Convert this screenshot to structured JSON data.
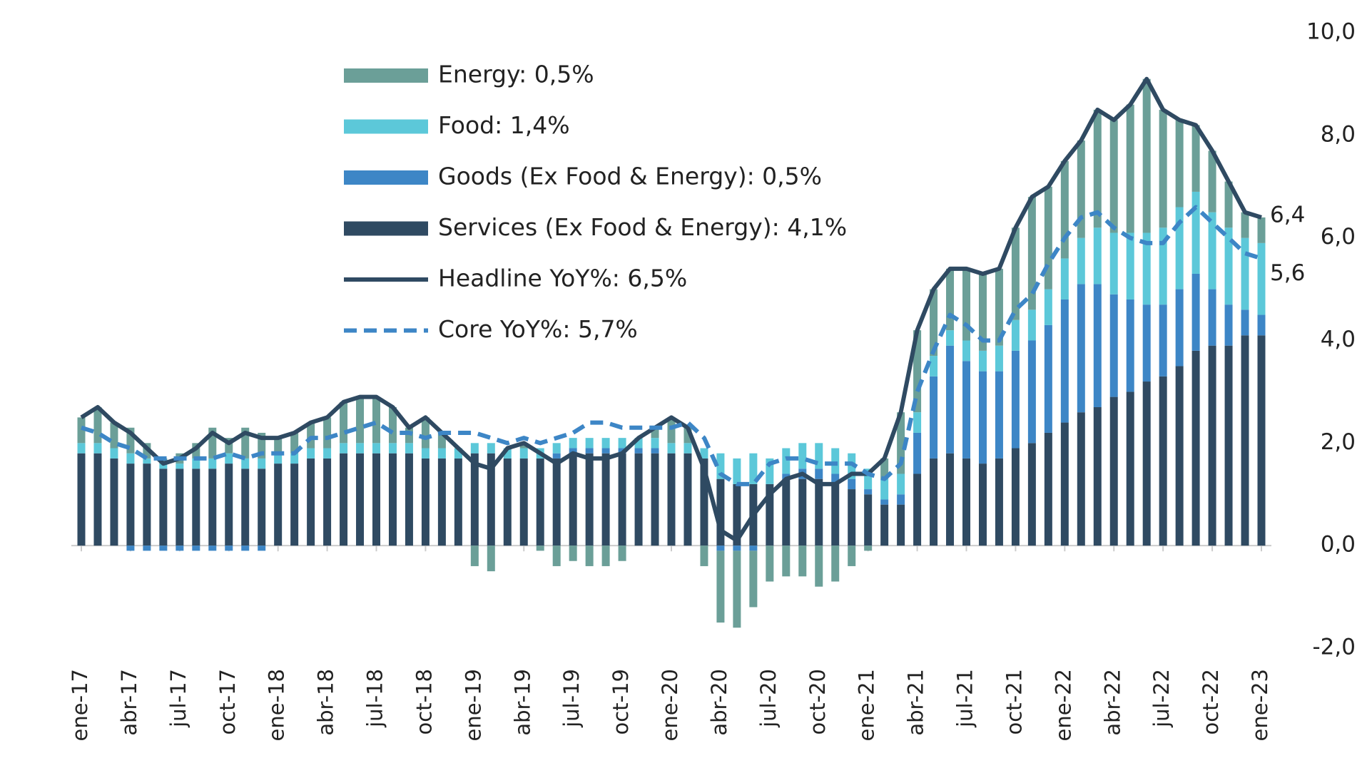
{
  "chart_data": {
    "type": "bar",
    "stacked": true,
    "categories": [
      "ene-17",
      null,
      null,
      "abr-17",
      null,
      null,
      "jul-17",
      null,
      null,
      "oct-17",
      null,
      null,
      "ene-18",
      null,
      null,
      "abr-18",
      null,
      null,
      "jul-18",
      null,
      null,
      "oct-18",
      null,
      null,
      "ene-19",
      null,
      null,
      "abr-19",
      null,
      null,
      "jul-19",
      null,
      null,
      "oct-19",
      null,
      null,
      "ene-20",
      null,
      null,
      "abr-20",
      null,
      null,
      "jul-20",
      null,
      null,
      "oct-20",
      null,
      null,
      "ene-21",
      null,
      null,
      "abr-21",
      null,
      null,
      "jul-21",
      null,
      null,
      "oct-21",
      null,
      null,
      "ene-22",
      null,
      null,
      "abr-22",
      null,
      null,
      "jul-22",
      null,
      null,
      "oct-22",
      null,
      null,
      "ene-23"
    ],
    "series": [
      {
        "name": "Services (Ex Food & Energy): 4,1%",
        "kind": "bar",
        "color": "#2f4a62",
        "values": [
          1.8,
          1.8,
          1.7,
          1.6,
          1.6,
          1.5,
          1.5,
          1.5,
          1.5,
          1.6,
          1.5,
          1.5,
          1.6,
          1.6,
          1.7,
          1.7,
          1.8,
          1.8,
          1.8,
          1.8,
          1.8,
          1.7,
          1.7,
          1.7,
          1.8,
          1.8,
          1.7,
          1.7,
          1.7,
          1.7,
          1.8,
          1.8,
          1.8,
          1.8,
          1.8,
          1.8,
          1.8,
          1.8,
          1.7,
          1.3,
          1.2,
          1.2,
          1.2,
          1.3,
          1.3,
          1.3,
          1.2,
          1.1,
          1.0,
          0.8,
          0.8,
          1.4,
          1.7,
          1.8,
          1.7,
          1.6,
          1.7,
          1.9,
          2.0,
          2.2,
          2.4,
          2.6,
          2.7,
          2.9,
          3.0,
          3.2,
          3.3,
          3.5,
          3.8,
          3.9,
          3.9,
          4.1,
          4.1
        ]
      },
      {
        "name": "Goods (Ex Food & Energy): 0,5%",
        "kind": "bar",
        "color": "#3d86c6",
        "values": [
          0.0,
          0.0,
          0.0,
          -0.1,
          -0.1,
          -0.1,
          -0.1,
          -0.1,
          -0.1,
          -0.1,
          -0.1,
          -0.1,
          0.0,
          0.0,
          0.0,
          0.0,
          0.0,
          0.0,
          0.0,
          0.0,
          0.0,
          0.0,
          0.0,
          0.0,
          0.0,
          0.0,
          0.0,
          0.0,
          0.0,
          0.1,
          0.1,
          0.1,
          0.1,
          0.1,
          0.1,
          0.1,
          0.0,
          0.0,
          0.0,
          -0.1,
          -0.1,
          -0.1,
          0.0,
          0.1,
          0.2,
          0.2,
          0.2,
          0.2,
          0.1,
          0.1,
          0.2,
          0.8,
          1.6,
          2.1,
          1.9,
          1.8,
          1.7,
          1.9,
          2.0,
          2.1,
          2.4,
          2.5,
          2.4,
          2.0,
          1.8,
          1.5,
          1.4,
          1.5,
          1.5,
          1.1,
          0.8,
          0.5,
          0.4
        ]
      },
      {
        "name": "Food: 1,4%",
        "kind": "bar",
        "color": "#5cc8d9",
        "values": [
          0.2,
          0.2,
          0.2,
          0.2,
          0.1,
          0.1,
          0.1,
          0.2,
          0.2,
          0.2,
          0.2,
          0.2,
          0.2,
          0.2,
          0.2,
          0.2,
          0.2,
          0.2,
          0.2,
          0.2,
          0.2,
          0.2,
          0.2,
          0.2,
          0.2,
          0.2,
          0.2,
          0.2,
          0.2,
          0.2,
          0.2,
          0.2,
          0.2,
          0.2,
          0.2,
          0.2,
          0.2,
          0.2,
          0.2,
          0.5,
          0.5,
          0.6,
          0.5,
          0.5,
          0.5,
          0.5,
          0.5,
          0.5,
          0.4,
          0.4,
          0.4,
          0.4,
          0.4,
          0.3,
          0.4,
          0.4,
          0.5,
          0.6,
          0.6,
          0.7,
          0.8,
          0.9,
          1.1,
          1.2,
          1.3,
          1.4,
          1.5,
          1.6,
          1.6,
          1.5,
          1.5,
          1.4,
          1.4
        ]
      },
      {
        "name": "Energy: 0,5%",
        "kind": "bar",
        "color": "#6b9f98",
        "values": [
          0.5,
          0.7,
          0.5,
          0.5,
          0.3,
          0.1,
          0.2,
          0.3,
          0.6,
          0.3,
          0.6,
          0.5,
          0.3,
          0.4,
          0.5,
          0.6,
          0.8,
          0.9,
          0.9,
          0.7,
          0.3,
          0.6,
          0.3,
          0.0,
          -0.4,
          -0.5,
          0.0,
          0.1,
          -0.1,
          -0.4,
          -0.3,
          -0.4,
          -0.4,
          -0.3,
          0.0,
          0.2,
          0.5,
          0.3,
          -0.4,
          -1.4,
          -1.5,
          -1.1,
          -0.7,
          -0.6,
          -0.6,
          -0.8,
          -0.7,
          -0.4,
          -0.1,
          0.4,
          1.2,
          1.6,
          1.3,
          1.2,
          1.4,
          1.5,
          1.5,
          1.8,
          2.2,
          2.0,
          1.9,
          1.9,
          2.3,
          2.2,
          2.5,
          3.0,
          2.3,
          1.7,
          1.3,
          1.2,
          0.9,
          0.5,
          0.5
        ]
      },
      {
        "name": "Headline YoY%: 6,5%",
        "kind": "line",
        "dashed": false,
        "color": "#2f4a62",
        "end_label": "6,4",
        "values": [
          2.5,
          2.7,
          2.4,
          2.2,
          1.9,
          1.6,
          1.7,
          1.9,
          2.2,
          2.0,
          2.2,
          2.1,
          2.1,
          2.2,
          2.4,
          2.5,
          2.8,
          2.9,
          2.9,
          2.7,
          2.3,
          2.5,
          2.2,
          1.9,
          1.6,
          1.5,
          1.9,
          2.0,
          1.8,
          1.6,
          1.8,
          1.7,
          1.7,
          1.8,
          2.1,
          2.3,
          2.5,
          2.3,
          1.5,
          0.3,
          0.1,
          0.6,
          1.0,
          1.3,
          1.4,
          1.2,
          1.2,
          1.4,
          1.4,
          1.7,
          2.6,
          4.2,
          5.0,
          5.4,
          5.4,
          5.3,
          5.4,
          6.2,
          6.8,
          7.0,
          7.5,
          7.9,
          8.5,
          8.3,
          8.6,
          9.1,
          8.5,
          8.3,
          8.2,
          7.7,
          7.1,
          6.5,
          6.4
        ]
      },
      {
        "name": "Core YoY%: 5,7%",
        "kind": "line",
        "dashed": true,
        "color": "#3d86c6",
        "end_label": "5,6",
        "values": [
          2.3,
          2.2,
          2.0,
          1.9,
          1.7,
          1.7,
          1.7,
          1.7,
          1.7,
          1.8,
          1.7,
          1.8,
          1.8,
          1.8,
          2.1,
          2.1,
          2.2,
          2.3,
          2.4,
          2.2,
          2.2,
          2.1,
          2.2,
          2.2,
          2.2,
          2.1,
          2.0,
          2.1,
          2.0,
          2.1,
          2.2,
          2.4,
          2.4,
          2.3,
          2.3,
          2.3,
          2.3,
          2.4,
          2.1,
          1.4,
          1.2,
          1.2,
          1.6,
          1.7,
          1.7,
          1.6,
          1.6,
          1.6,
          1.4,
          1.3,
          1.6,
          3.0,
          3.8,
          4.5,
          4.3,
          4.0,
          4.0,
          4.6,
          4.9,
          5.5,
          6.0,
          6.4,
          6.5,
          6.2,
          6.0,
          5.9,
          5.9,
          6.3,
          6.6,
          6.3,
          6.0,
          5.7,
          5.6
        ]
      }
    ],
    "legend_order": [
      3,
      2,
      1,
      0,
      4,
      5
    ],
    "ylim": [
      -2,
      10
    ],
    "yticks": [
      {
        "value": -2,
        "label": "-2,0"
      },
      {
        "value": 0,
        "label": "0,0"
      },
      {
        "value": 2,
        "label": "2,0"
      },
      {
        "value": 4,
        "label": "4,0"
      },
      {
        "value": 6,
        "label": "6,0"
      },
      {
        "value": 8,
        "label": "8,0"
      },
      {
        "value": 10,
        "label": "10,0"
      }
    ],
    "grid": false,
    "legend": "upper left"
  }
}
